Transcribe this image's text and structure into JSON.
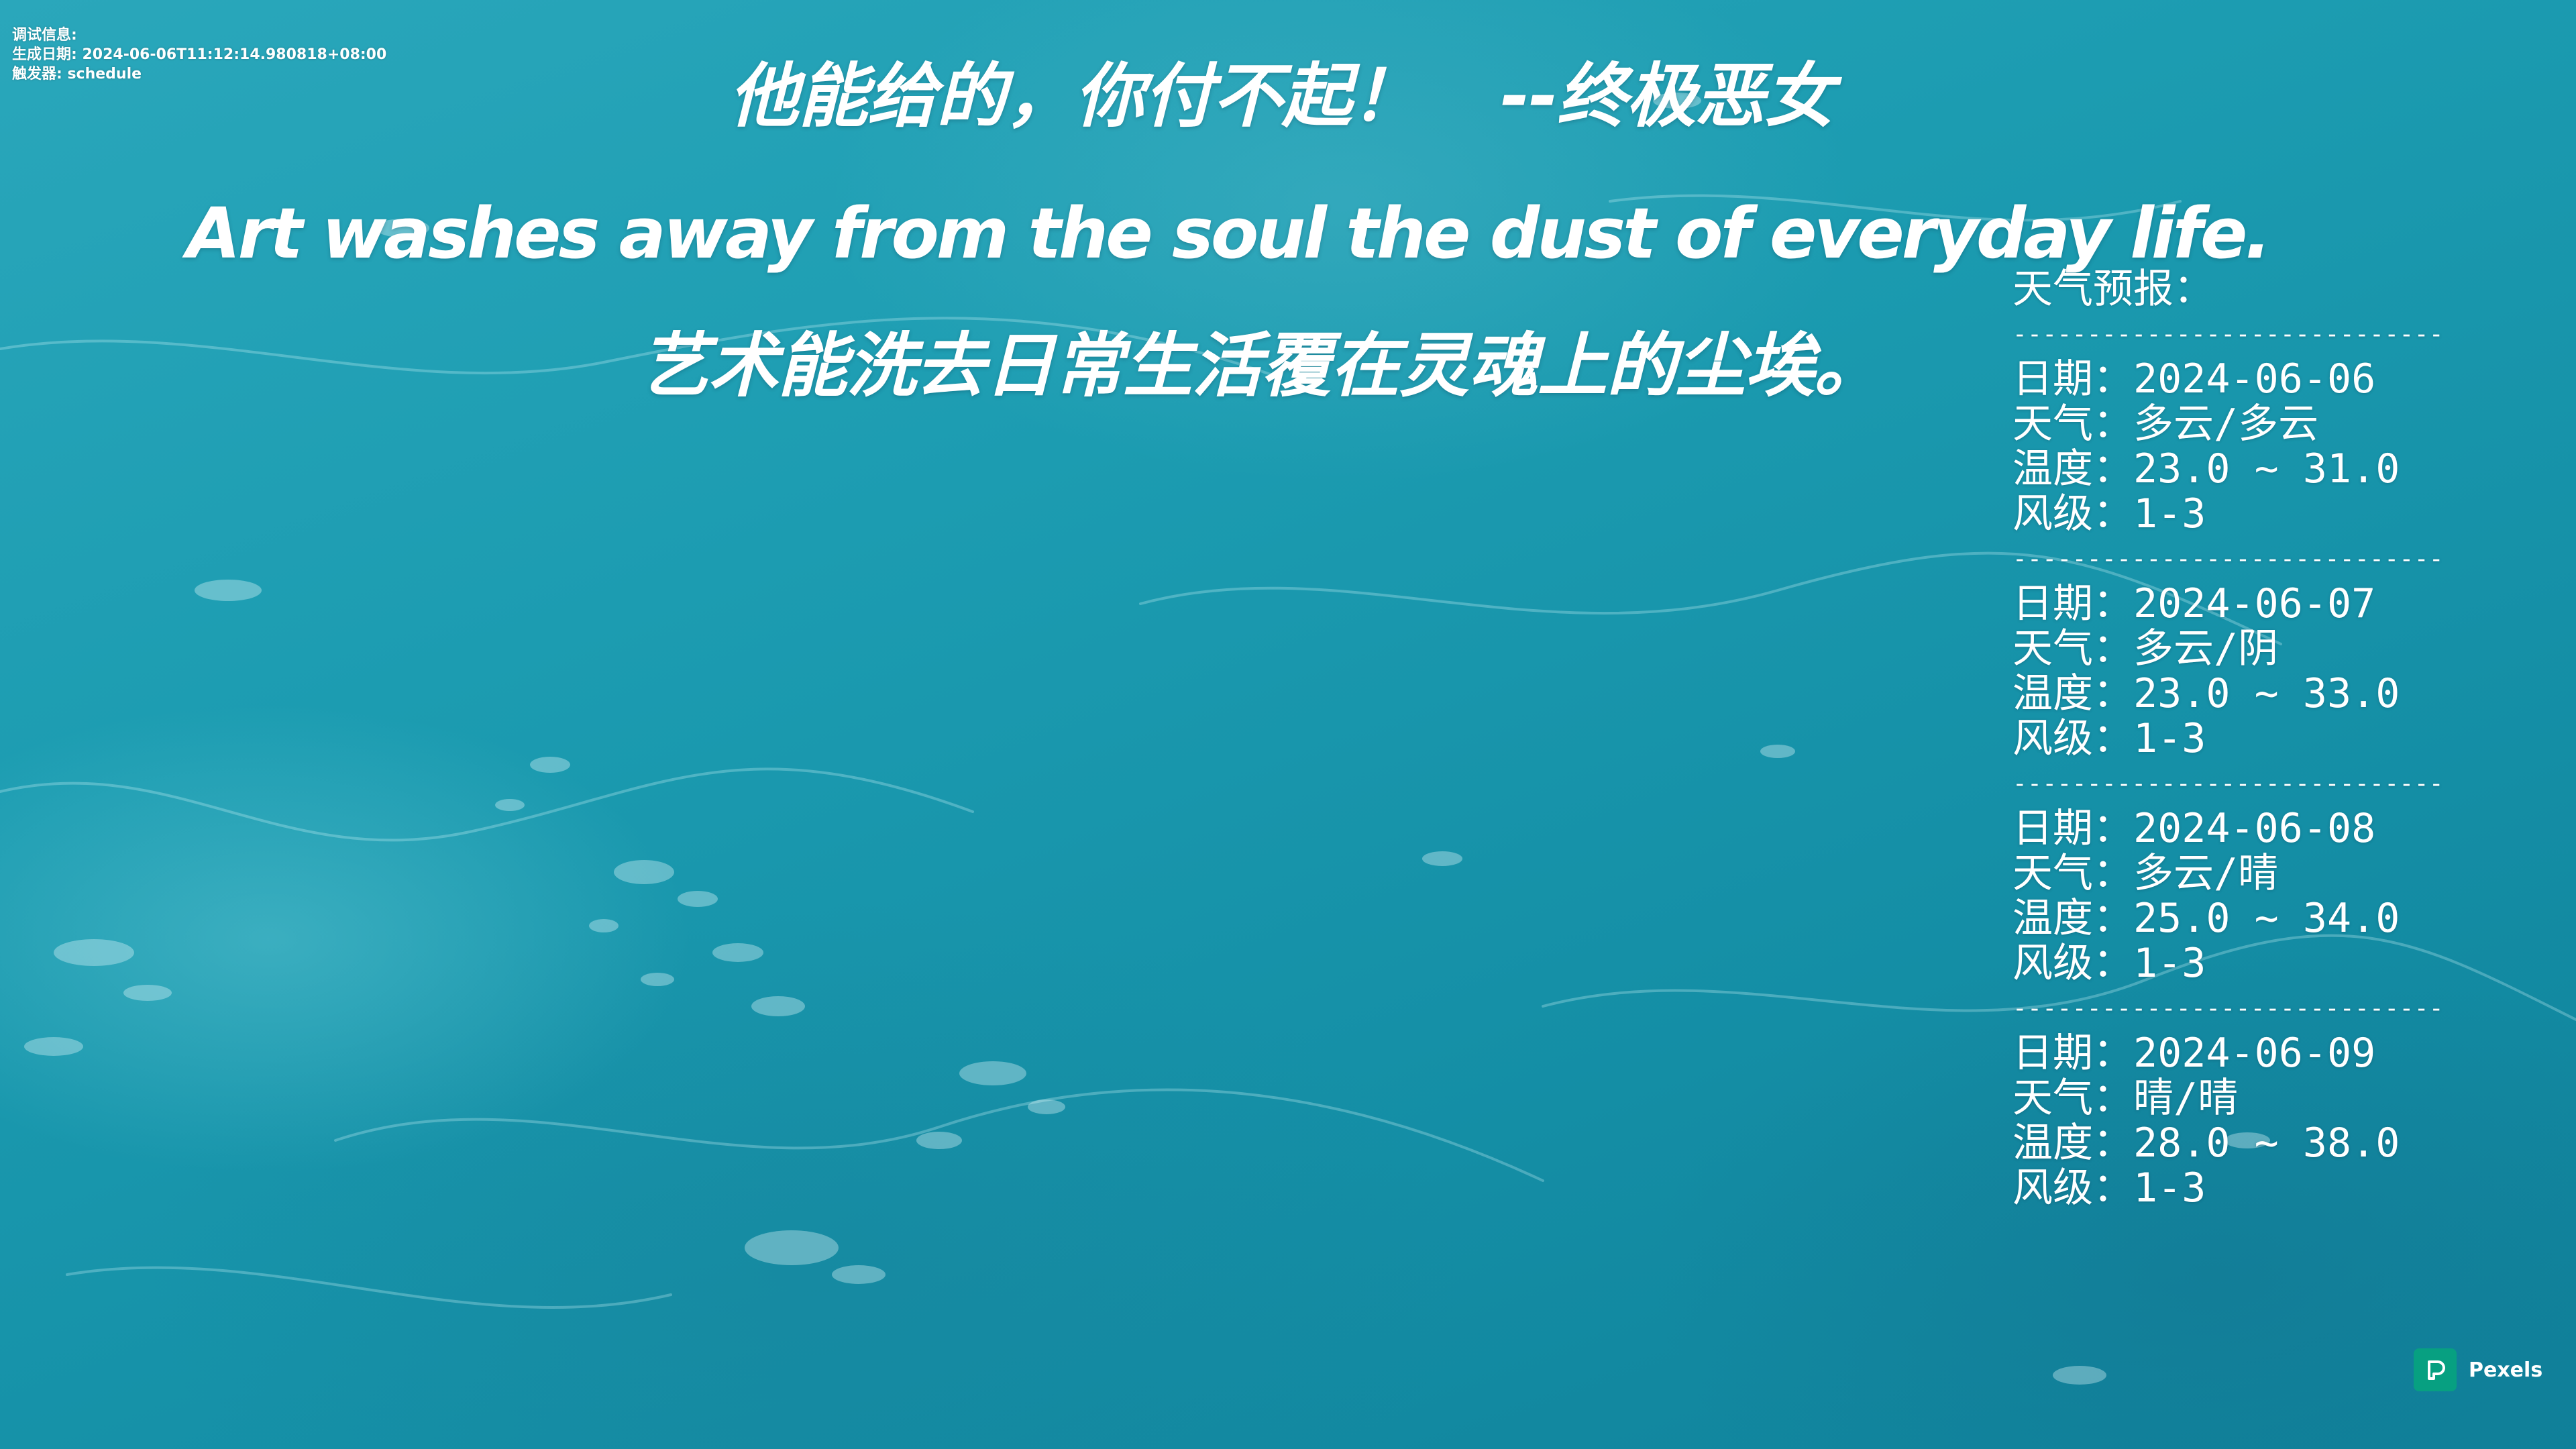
{
  "debug": {
    "line1": "调试信息:",
    "line2": "生成日期: 2024-06-06T11:12:14.980818+08:00",
    "line3": "触发器: schedule"
  },
  "quote": {
    "chinese": "他能给的，你付不起！",
    "author": "--终极恶女",
    "english": "Art washes away from the soul the dust of everyday life.",
    "english_cn": "艺术能洗去日常生活覆在灵魂上的尘埃。"
  },
  "weather": {
    "title": "天气预报：",
    "separator": "-----------------------------------------------",
    "labels": {
      "date": "日期：",
      "weather": "天气：",
      "temp": "温度：",
      "wind": "风级："
    },
    "days": [
      {
        "date": "2024-06-06",
        "weather": "多云/多云",
        "temp": "23.0 ~ 31.0",
        "wind": "1-3"
      },
      {
        "date": "2024-06-07",
        "weather": "多云/阴",
        "temp": "23.0 ~ 33.0",
        "wind": "1-3"
      },
      {
        "date": "2024-06-08",
        "weather": "多云/晴",
        "temp": "25.0 ~ 34.0",
        "wind": "1-3"
      },
      {
        "date": "2024-06-09",
        "weather": "晴/晴",
        "temp": "28.0 ~ 38.0",
        "wind": "1-3"
      }
    ]
  },
  "watermark": {
    "label": "Pexels",
    "icon": "pexels-logo-icon",
    "color": "#07a081"
  }
}
